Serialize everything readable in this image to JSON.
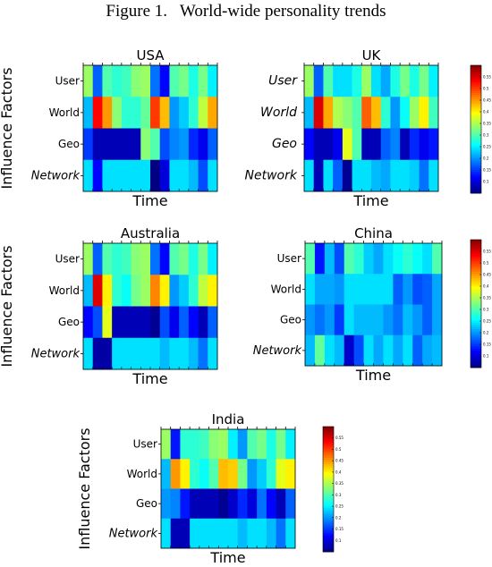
{
  "page": {
    "title": "Figure 1.   World-wide personality trends"
  },
  "chart_data": [
    {
      "type": "heatmap",
      "title": "USA",
      "xlabel": "Time",
      "ylabel": "Influence Factors",
      "rows": [
        "User",
        "World",
        "Geo",
        "Network"
      ],
      "row_italic": [
        false,
        false,
        false,
        true
      ],
      "values": [
        [
          0.34,
          0.17,
          0.3,
          0.28,
          0.29,
          0.33,
          0.34,
          0.18,
          0.12,
          0.3,
          0.32,
          0.27,
          0.32,
          0.25
        ],
        [
          0.22,
          0.53,
          0.45,
          0.33,
          0.28,
          0.28,
          0.31,
          0.5,
          0.43,
          0.2,
          0.23,
          0.28,
          0.36,
          0.44
        ],
        [
          0.15,
          0.08,
          0.08,
          0.08,
          0.08,
          0.08,
          0.33,
          0.3,
          0.16,
          0.19,
          0.2,
          0.14,
          0.11,
          0.17
        ],
        [
          0.24,
          0.12,
          0.24,
          0.24,
          0.24,
          0.24,
          0.24,
          0.05,
          0.1,
          0.24,
          0.24,
          0.22,
          0.16,
          0.24
        ]
      ],
      "vmin": 0.05,
      "vmax": 0.6,
      "has_colorbar": false
    },
    {
      "type": "heatmap",
      "title": "UK",
      "xlabel": "Time",
      "ylabel": "",
      "rows": [
        "User",
        "World",
        "Geo",
        "Network"
      ],
      "row_italic": [
        true,
        true,
        true,
        true
      ],
      "values": [
        [
          0.34,
          0.17,
          0.3,
          0.24,
          0.24,
          0.27,
          0.34,
          0.24,
          0.21,
          0.27,
          0.32,
          0.27,
          0.32,
          0.25
        ],
        [
          0.22,
          0.55,
          0.44,
          0.35,
          0.33,
          0.3,
          0.48,
          0.43,
          0.28,
          0.2,
          0.26,
          0.34,
          0.4,
          0.29
        ],
        [
          0.12,
          0.08,
          0.08,
          0.11,
          0.38,
          0.3,
          0.08,
          0.08,
          0.17,
          0.19,
          0.08,
          0.14,
          0.11,
          0.13
        ],
        [
          0.24,
          0.08,
          0.24,
          0.17,
          0.06,
          0.24,
          0.24,
          0.22,
          0.21,
          0.24,
          0.24,
          0.23,
          0.18,
          0.24
        ]
      ],
      "vmin": 0.05,
      "vmax": 0.6,
      "has_colorbar": true,
      "colorbar_ticks": [
        "0.1",
        "0.15",
        "0.2",
        "0.25",
        "0.3",
        "0.35",
        "0.4",
        "0.45",
        "0.5",
        "0.55"
      ]
    },
    {
      "type": "heatmap",
      "title": "Australia",
      "xlabel": "Time",
      "ylabel": "Influence Factors",
      "rows": [
        "User",
        "World",
        "Geo",
        "Network"
      ],
      "row_italic": [
        false,
        false,
        false,
        true
      ],
      "values": [
        [
          0.34,
          0.17,
          0.3,
          0.28,
          0.29,
          0.33,
          0.34,
          0.18,
          0.12,
          0.3,
          0.32,
          0.27,
          0.32,
          0.25
        ],
        [
          0.22,
          0.55,
          0.4,
          0.28,
          0.26,
          0.32,
          0.34,
          0.46,
          0.4,
          0.2,
          0.23,
          0.28,
          0.36,
          0.4
        ],
        [
          0.12,
          0.16,
          0.38,
          0.08,
          0.08,
          0.08,
          0.08,
          0.06,
          0.16,
          0.11,
          0.17,
          0.12,
          0.08,
          0.17
        ],
        [
          0.24,
          0.07,
          0.07,
          0.24,
          0.24,
          0.24,
          0.24,
          0.24,
          0.22,
          0.24,
          0.24,
          0.22,
          0.18,
          0.24
        ]
      ],
      "vmin": 0.05,
      "vmax": 0.6,
      "has_colorbar": false
    },
    {
      "type": "heatmap",
      "title": "China",
      "xlabel": "Time",
      "ylabel": "",
      "rows": [
        "User",
        "World",
        "Geo",
        "Network"
      ],
      "row_italic": [
        false,
        false,
        false,
        true
      ],
      "values": [
        [
          0.3,
          0.13,
          0.22,
          0.16,
          0.3,
          0.28,
          0.23,
          0.21,
          0.24,
          0.26,
          0.28,
          0.26,
          0.24,
          0.3
        ],
        [
          0.24,
          0.21,
          0.21,
          0.2,
          0.24,
          0.24,
          0.24,
          0.24,
          0.24,
          0.17,
          0.2,
          0.16,
          0.17,
          0.21
        ],
        [
          0.2,
          0.18,
          0.2,
          0.15,
          0.24,
          0.22,
          0.22,
          0.22,
          0.2,
          0.18,
          0.22,
          0.2,
          0.17,
          0.21
        ],
        [
          0.22,
          0.31,
          0.24,
          0.22,
          0.09,
          0.16,
          0.24,
          0.21,
          0.24,
          0.21,
          0.24,
          0.17,
          0.21,
          0.22
        ]
      ],
      "vmin": 0.05,
      "vmax": 0.6,
      "has_colorbar": true,
      "colorbar_ticks": [
        "0.1",
        "0.15",
        "0.2",
        "0.25",
        "0.3",
        "0.35",
        "0.4",
        "0.45",
        "0.5",
        "0.55"
      ]
    },
    {
      "type": "heatmap",
      "title": "India",
      "xlabel": "Time",
      "ylabel": "Influence Factors",
      "rows": [
        "User",
        "World",
        "Geo",
        "Network"
      ],
      "row_italic": [
        false,
        false,
        false,
        true
      ],
      "values": [
        [
          0.34,
          0.13,
          0.28,
          0.28,
          0.29,
          0.33,
          0.34,
          0.25,
          0.2,
          0.3,
          0.32,
          0.27,
          0.32,
          0.25
        ],
        [
          0.22,
          0.45,
          0.4,
          0.28,
          0.26,
          0.3,
          0.43,
          0.42,
          0.32,
          0.2,
          0.23,
          0.28,
          0.38,
          0.4
        ],
        [
          0.2,
          0.19,
          0.13,
          0.08,
          0.08,
          0.08,
          0.06,
          0.09,
          0.14,
          0.1,
          0.18,
          0.12,
          0.08,
          0.17
        ],
        [
          0.24,
          0.08,
          0.08,
          0.24,
          0.24,
          0.24,
          0.24,
          0.24,
          0.22,
          0.24,
          0.24,
          0.22,
          0.18,
          0.24
        ]
      ],
      "vmin": 0.05,
      "vmax": 0.6,
      "has_colorbar": true,
      "colorbar_ticks": [
        "0.1",
        "0.15",
        "0.2",
        "0.25",
        "0.3",
        "0.35",
        "0.4",
        "0.45",
        "0.5",
        "0.55"
      ]
    }
  ]
}
